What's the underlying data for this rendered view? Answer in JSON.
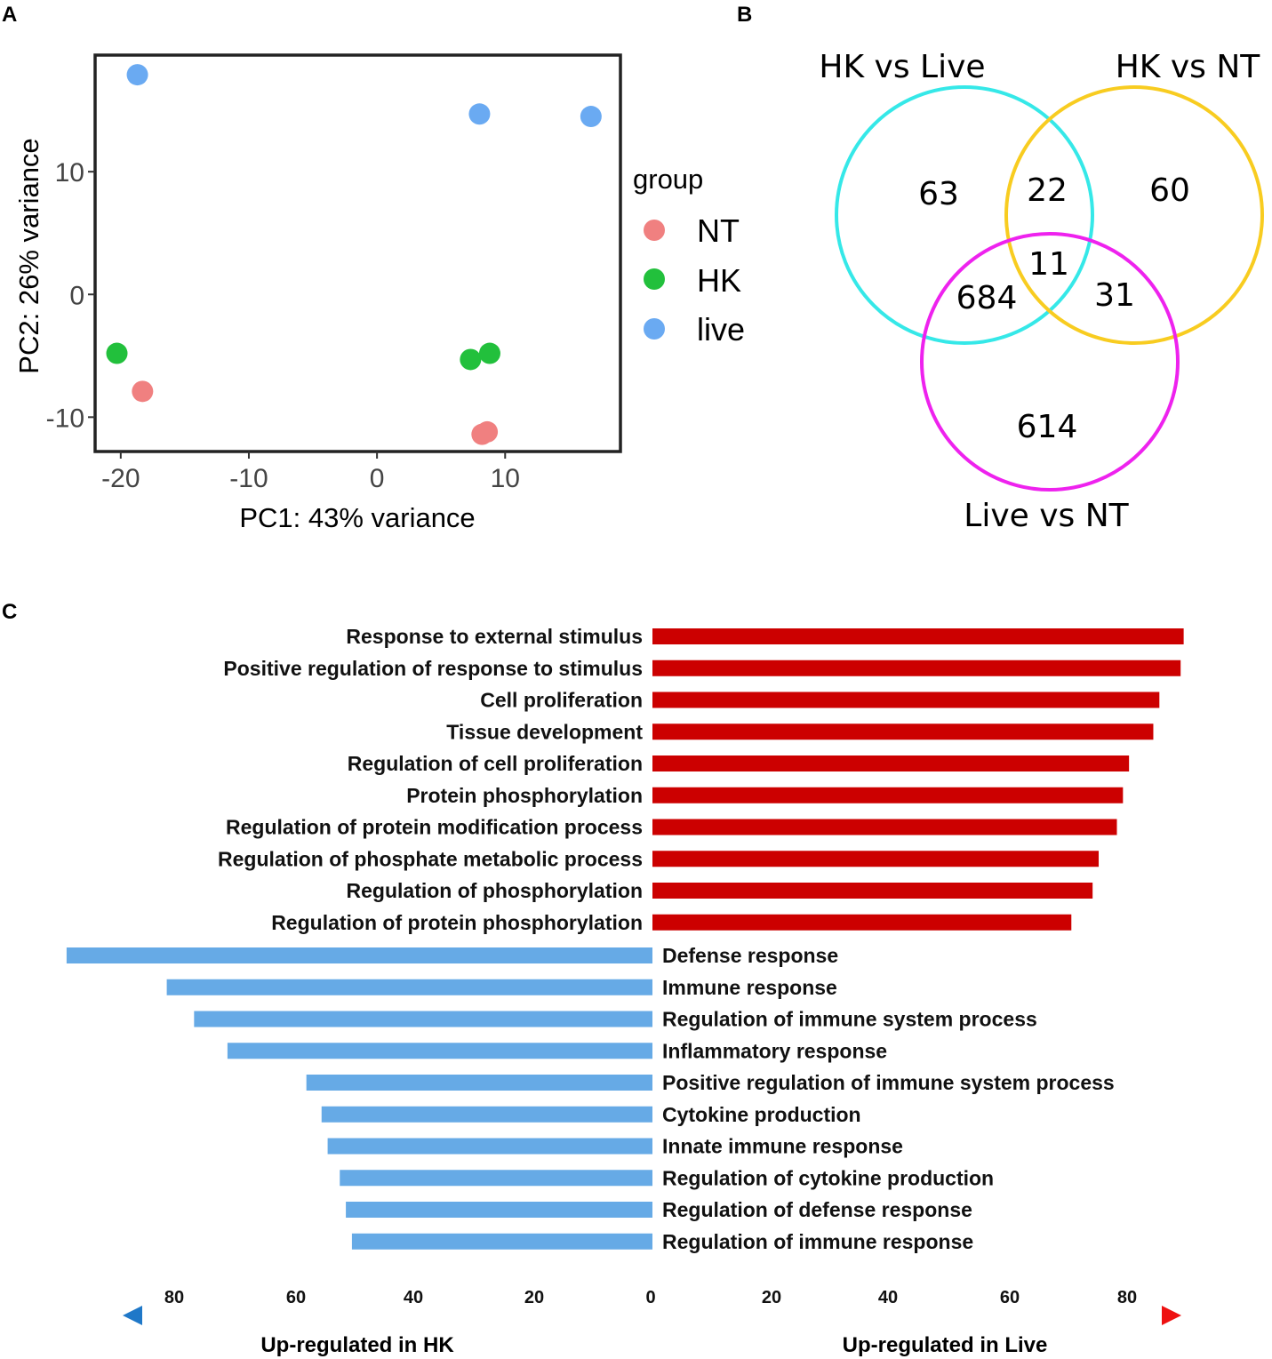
{
  "panels": {
    "a": "A",
    "b": "B",
    "c": "C"
  },
  "chart_data": [
    {
      "type": "scatter",
      "panel": "A",
      "xlabel": "PC1: 43% variance",
      "ylabel": "PC2: 26% variance",
      "xlim": [
        -22,
        19
      ],
      "ylim": [
        -12.8,
        19.5
      ],
      "x_ticks": [
        -20,
        -10,
        0,
        10
      ],
      "y_ticks": [
        -10,
        0,
        10
      ],
      "legend": {
        "title": "group",
        "position": "right",
        "entries": [
          {
            "label": "NT",
            "color": "#f08080"
          },
          {
            "label": "HK",
            "color": "#22c03c"
          },
          {
            "label": "live",
            "color": "#6aaaf2"
          }
        ]
      },
      "series": [
        {
          "name": "NT",
          "color": "#f08080",
          "points": [
            [
              -18.3,
              -7.9
            ],
            [
              8.2,
              -11.4
            ],
            [
              8.6,
              -11.2
            ]
          ]
        },
        {
          "name": "HK",
          "color": "#22c03c",
          "points": [
            [
              -20.3,
              -4.8
            ],
            [
              7.3,
              -5.3
            ],
            [
              8.8,
              -4.8
            ]
          ]
        },
        {
          "name": "live",
          "color": "#6aaaf2",
          "points": [
            [
              -18.7,
              17.9
            ],
            [
              8.0,
              14.7
            ],
            [
              16.7,
              14.5
            ]
          ]
        }
      ]
    },
    {
      "type": "venn",
      "panel": "B",
      "sets": [
        {
          "name": "HK vs Live",
          "color": "#35e8e8"
        },
        {
          "name": "HK vs NT",
          "color": "#f8cc20"
        },
        {
          "name": "Live vs NT",
          "color": "#ee22ee"
        }
      ],
      "regions": [
        {
          "sets": [
            "HK vs Live"
          ],
          "count": "63"
        },
        {
          "sets": [
            "HK vs NT"
          ],
          "count": "60"
        },
        {
          "sets": [
            "Live vs NT"
          ],
          "count": "614"
        },
        {
          "sets": [
            "HK vs Live",
            "HK vs NT"
          ],
          "count": "22"
        },
        {
          "sets": [
            "HK vs Live",
            "Live vs NT"
          ],
          "count": "684"
        },
        {
          "sets": [
            "HK vs NT",
            "Live vs NT"
          ],
          "count": "31"
        },
        {
          "sets": [
            "HK vs Live",
            "HK vs NT",
            "Live vs NT"
          ],
          "count": "11"
        }
      ]
    },
    {
      "type": "bar",
      "panel": "C",
      "orientation": "horizontal-diverging",
      "axis_ticks_left": [
        "80",
        "60",
        "40",
        "20"
      ],
      "axis_ticks_right": [
        "20",
        "40",
        "60",
        "80"
      ],
      "axis_zero": "0",
      "left_label": "Up-regulated in HK",
      "right_label": "Up-regulated in Live",
      "left_color": "#66aae6",
      "right_color": "#cc0000",
      "left_arrow_color": "#1f78c8",
      "right_arrow_color": "#ee1111",
      "series": [
        {
          "name": "Up-regulated in Live",
          "color": "#cc0000",
          "categories": [
            "Response to external stimulus",
            "Positive regulation of response to stimulus",
            "Cell proliferation",
            "Tissue development",
            "Regulation of cell proliferation",
            "Protein phosphorylation",
            "Regulation of protein modification process",
            "Regulation of phosphate metabolic process",
            "Regulation of phosphorylation",
            "Regulation of protein phosphorylation"
          ],
          "values": [
            87.5,
            87.0,
            83.5,
            82.5,
            78.5,
            77.5,
            76.5,
            73.5,
            72.5,
            69.0
          ]
        },
        {
          "name": "Up-regulated in HK",
          "color": "#66aae6",
          "categories": [
            "Defense response",
            "Immune response",
            "Regulation of immune system process",
            "Inflammatory response",
            "Positive regulation of immune system process",
            "Cytokine production",
            "Innate immune response",
            "Regulation of cytokine production",
            "Regulation of defense response",
            "Regulation of immune response"
          ],
          "values": [
            96.5,
            80.0,
            75.5,
            70.0,
            57.0,
            54.5,
            53.5,
            51.5,
            50.5,
            49.5
          ]
        }
      ]
    }
  ]
}
